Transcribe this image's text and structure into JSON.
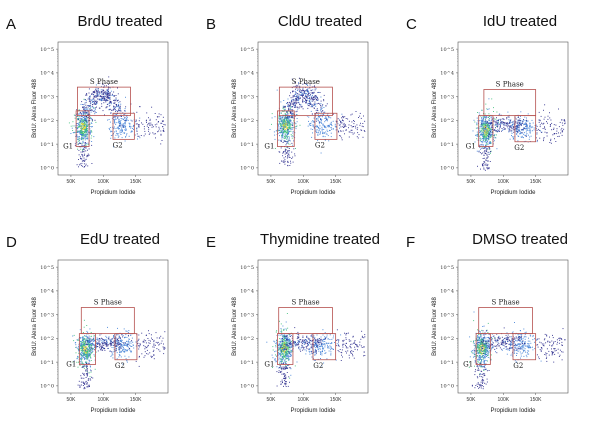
{
  "chart_data": [
    {
      "type": "scatter",
      "panel": "A",
      "title": "BrdU  treated",
      "xlabel": "Propidium Iodide",
      "ylabel": "BrdU: Alexa Fluor 488",
      "x_ticks": [
        "50K",
        "100K",
        "150K"
      ],
      "y_ticks": [
        "10^0",
        "10^1",
        "10^2",
        "10^3",
        "10^4",
        "10^5"
      ],
      "xlim": [
        30000,
        200000
      ],
      "ylim_log10": [
        -0.3,
        5.3
      ],
      "y_scale": "log",
      "gates": [
        {
          "label": "S Phase",
          "x": [
            60000,
            142000
          ],
          "y_log10": [
            2.2,
            3.4
          ]
        },
        {
          "label": "G1",
          "x": [
            58000,
            78000
          ],
          "y_log10": [
            0.9,
            2.4
          ]
        },
        {
          "label": "G2",
          "x": [
            115000,
            148000
          ],
          "y_log10": [
            1.2,
            2.3
          ]
        }
      ],
      "populations": {
        "g1": {
          "x": 68000,
          "y_log10": 1.75
        },
        "s_phase_spread": "strong",
        "g2": {
          "x": 128000,
          "y_log10": 1.75
        }
      }
    },
    {
      "type": "scatter",
      "panel": "B",
      "title": "CldU  treated",
      "xlabel": "Propidium Iodide",
      "ylabel": "BrdU: Alexa Fluor 488",
      "x_ticks": [
        "50K",
        "100K",
        "150K"
      ],
      "y_ticks": [
        "10^0",
        "10^1",
        "10^2",
        "10^3",
        "10^4",
        "10^5"
      ],
      "xlim": [
        30000,
        200000
      ],
      "ylim_log10": [
        -0.3,
        5.3
      ],
      "y_scale": "log",
      "gates": [
        {
          "label": "S Phase",
          "x": [
            63000,
            145000
          ],
          "y_log10": [
            2.2,
            3.4
          ]
        },
        {
          "label": "G1",
          "x": [
            60000,
            86000
          ],
          "y_log10": [
            0.9,
            2.4
          ]
        },
        {
          "label": "G2",
          "x": [
            118000,
            152000
          ],
          "y_log10": [
            1.2,
            2.3
          ]
        }
      ],
      "populations": {
        "g1": {
          "x": 72000,
          "y_log10": 1.8
        },
        "s_phase_spread": "strong",
        "g2": {
          "x": 130000,
          "y_log10": 1.8
        }
      }
    },
    {
      "type": "scatter",
      "panel": "C",
      "title": "IdU  treated",
      "xlabel": "Propidium Iodide",
      "ylabel": "BrdU: Alexa Fluor 488",
      "x_ticks": [
        "50K",
        "100K",
        "150K"
      ],
      "y_ticks": [
        "10^0",
        "10^1",
        "10^2",
        "10^3",
        "10^4",
        "10^5"
      ],
      "xlim": [
        30000,
        200000
      ],
      "ylim_log10": [
        -0.3,
        5.3
      ],
      "y_scale": "log",
      "gates": [
        {
          "label": "S Phase",
          "x": [
            70000,
            150000
          ],
          "y_log10": [
            2.2,
            3.3
          ]
        },
        {
          "label": "G1",
          "x": [
            62000,
            84000
          ],
          "y_log10": [
            0.9,
            2.2
          ]
        },
        {
          "label": "G2",
          "x": [
            118000,
            150000
          ],
          "y_log10": [
            1.1,
            2.2
          ]
        }
      ],
      "populations": {
        "g1": {
          "x": 72000,
          "y_log10": 1.6
        },
        "s_phase_spread": "weak",
        "g2": {
          "x": 130000,
          "y_log10": 1.7
        }
      }
    },
    {
      "type": "scatter",
      "panel": "D",
      "title": "EdU  treated",
      "xlabel": "Propidium Iodide",
      "ylabel": "BrdU: Alexa Fluor 488",
      "x_ticks": [
        "50K",
        "100K",
        "150K"
      ],
      "y_ticks": [
        "10^0",
        "10^1",
        "10^2",
        "10^3",
        "10^4",
        "10^5"
      ],
      "xlim": [
        30000,
        200000
      ],
      "ylim_log10": [
        -0.3,
        5.3
      ],
      "y_scale": "log",
      "gates": [
        {
          "label": "S Phase",
          "x": [
            66000,
            148000
          ],
          "y_log10": [
            2.2,
            3.3
          ]
        },
        {
          "label": "G1",
          "x": [
            63000,
            88000
          ],
          "y_log10": [
            0.9,
            2.2
          ]
        },
        {
          "label": "G2",
          "x": [
            118000,
            152000
          ],
          "y_log10": [
            1.1,
            2.2
          ]
        }
      ],
      "populations": {
        "g1": {
          "x": 72000,
          "y_log10": 1.6
        },
        "s_phase_spread": "weak",
        "g2": {
          "x": 130000,
          "y_log10": 1.7
        }
      }
    },
    {
      "type": "scatter",
      "panel": "E",
      "title": "Thymidine  treated",
      "xlabel": "Propidium Iodide",
      "ylabel": "BrdU: Alexa Fluor 488",
      "x_ticks": [
        "50K",
        "100K",
        "150K"
      ],
      "y_ticks": [
        "10^0",
        "10^1",
        "10^2",
        "10^3",
        "10^4",
        "10^5"
      ],
      "xlim": [
        30000,
        200000
      ],
      "ylim_log10": [
        -0.3,
        5.3
      ],
      "y_scale": "log",
      "gates": [
        {
          "label": "S Phase",
          "x": [
            62000,
            145000
          ],
          "y_log10": [
            2.2,
            3.3
          ]
        },
        {
          "label": "G1",
          "x": [
            60000,
            84000
          ],
          "y_log10": [
            0.9,
            2.2
          ]
        },
        {
          "label": "G2",
          "x": [
            115000,
            150000
          ],
          "y_log10": [
            1.1,
            2.2
          ]
        }
      ],
      "populations": {
        "g1": {
          "x": 70000,
          "y_log10": 1.6
        },
        "s_phase_spread": "weak",
        "g2": {
          "x": 128000,
          "y_log10": 1.7
        }
      }
    },
    {
      "type": "scatter",
      "panel": "F",
      "title": "DMSO treated",
      "xlabel": "Propidium Iodide",
      "ylabel": "BrdU: Alexa Fluor 488",
      "x_ticks": [
        "50K",
        "100K",
        "150K"
      ],
      "y_ticks": [
        "10^0",
        "10^1",
        "10^2",
        "10^3",
        "10^4",
        "10^5"
      ],
      "xlim": [
        30000,
        200000
      ],
      "ylim_log10": [
        -0.3,
        5.3
      ],
      "y_scale": "log",
      "gates": [
        {
          "label": "S Phase",
          "x": [
            62000,
            145000
          ],
          "y_log10": [
            2.2,
            3.3
          ]
        },
        {
          "label": "G1",
          "x": [
            58000,
            80000
          ],
          "y_log10": [
            0.9,
            2.2
          ]
        },
        {
          "label": "G2",
          "x": [
            115000,
            150000
          ],
          "y_log10": [
            1.1,
            2.2
          ]
        }
      ],
      "populations": {
        "g1": {
          "x": 66000,
          "y_log10": 1.6
        },
        "s_phase_spread": "weak",
        "g2": {
          "x": 128000,
          "y_log10": 1.7
        }
      }
    }
  ],
  "colors": {
    "gate": "#b5504e",
    "points_low": "#2a2a8c",
    "points_mid": "#3f7fd6",
    "points_high": "#3ec07a",
    "points_peak": "#e8d23a"
  }
}
